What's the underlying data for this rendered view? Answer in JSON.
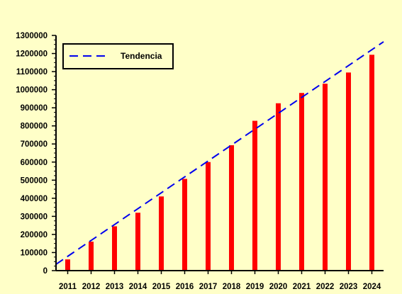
{
  "chart_data": {
    "type": "bar",
    "title": "",
    "xlabel": "",
    "ylabel": "",
    "categories": [
      "2011",
      "2012",
      "2013",
      "2014",
      "2015",
      "2016",
      "2017",
      "2018",
      "2019",
      "2020",
      "2021",
      "2022",
      "2023",
      "2024"
    ],
    "series": [
      {
        "values": [
          62000,
          160000,
          245000,
          320000,
          410000,
          507000,
          600000,
          693000,
          828000,
          925000,
          982000,
          1033000,
          1095000,
          1193000
        ],
        "color": "#ff0000"
      }
    ],
    "trendline": {
      "name": "Tendencia",
      "color": "#0000ee",
      "style": "dashed",
      "start_value": 35000,
      "end_value": 1265000
    },
    "ylim": [
      0,
      1300000
    ],
    "yticks": [
      0,
      100000,
      200000,
      300000,
      400000,
      500000,
      600000,
      700000,
      800000,
      900000,
      1000000,
      1100000,
      1200000,
      1300000
    ],
    "ytick_labels": [
      "0",
      "100000",
      "200000",
      "300000",
      "400000",
      "500000",
      "600000",
      "700000",
      "800000",
      "900000",
      "1000000",
      "1100000",
      "1200000",
      "1300000"
    ],
    "legend": {
      "position": "top-left",
      "entries": [
        "Tendencia"
      ]
    },
    "grid": false
  }
}
